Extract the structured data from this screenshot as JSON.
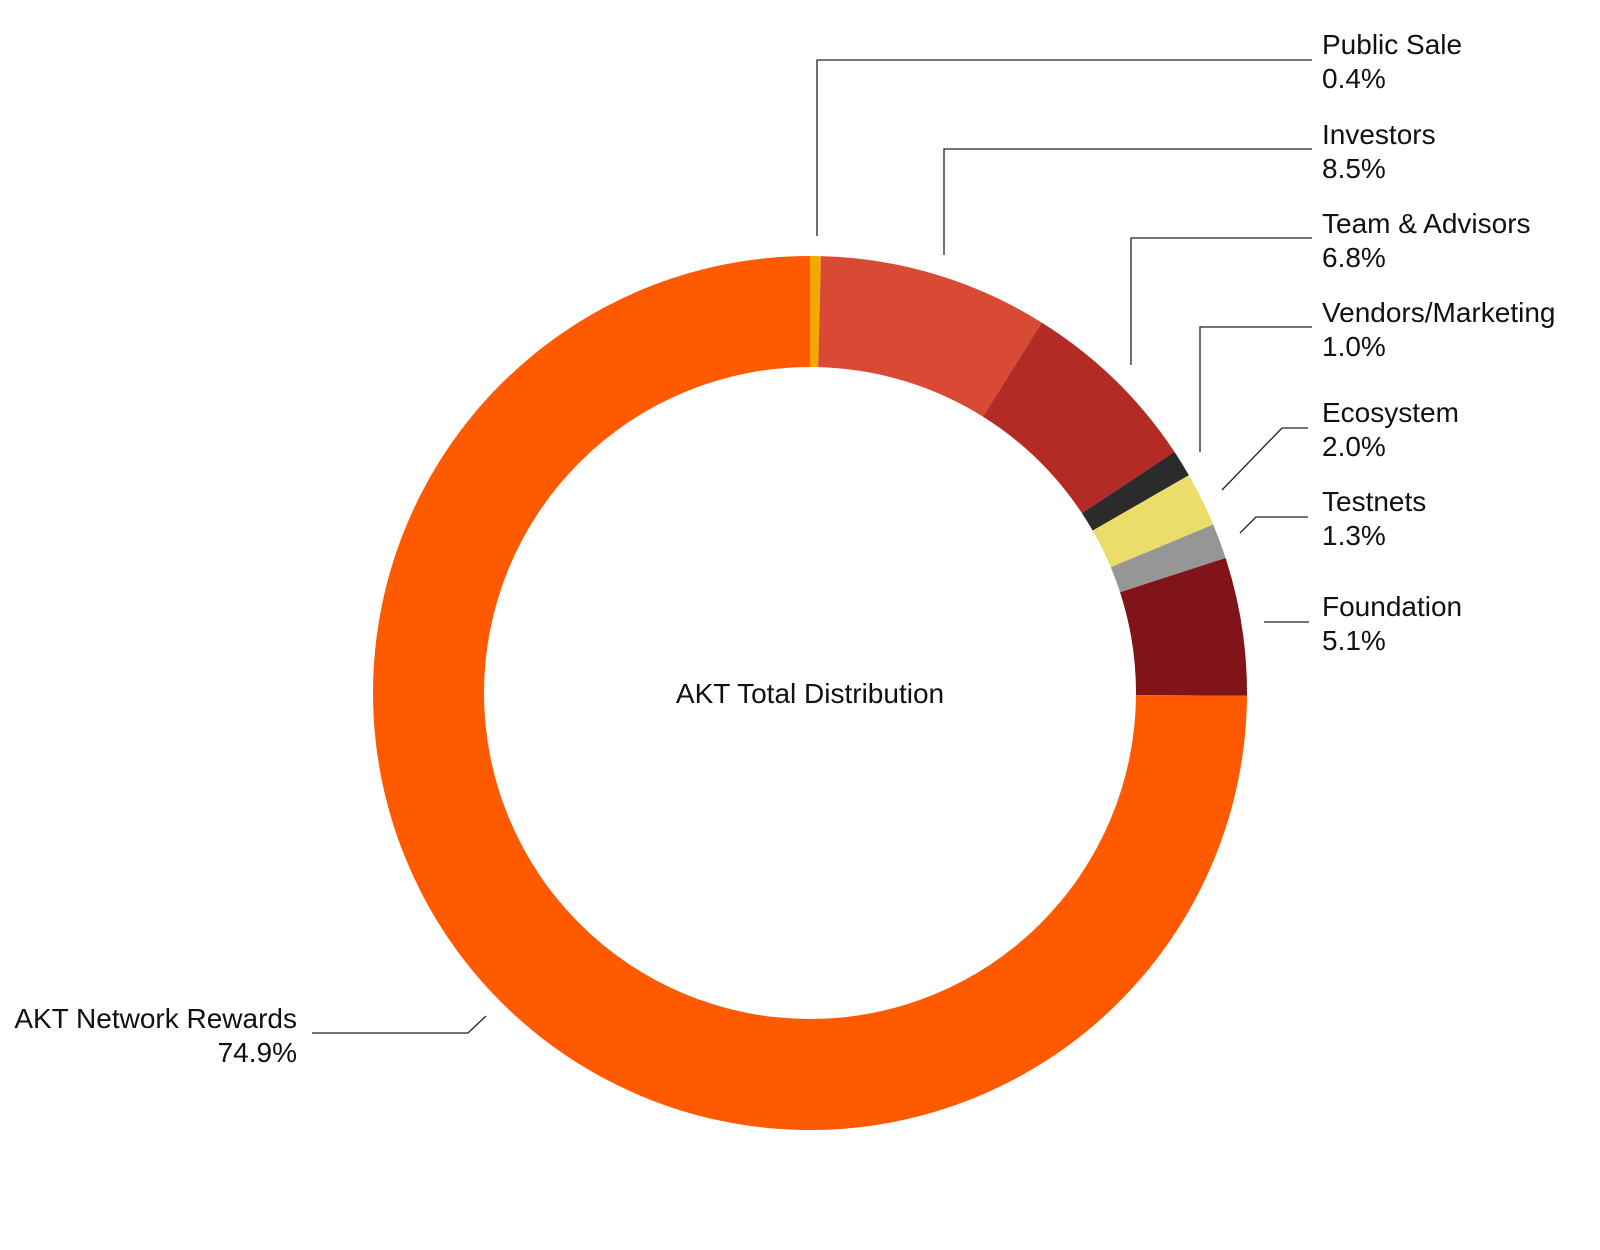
{
  "chart_data": {
    "type": "pie",
    "variant": "donut",
    "title": "AKT Total Distribution",
    "unit": "%",
    "legend": "none",
    "slices": [
      {
        "name": "Public Sale",
        "label": "0.4%",
        "value": 0.4,
        "color": "#F5A800"
      },
      {
        "name": "Investors",
        "label": "8.5%",
        "value": 8.5,
        "color": "#D94A35"
      },
      {
        "name": "Team & Advisors",
        "label": "6.8%",
        "value": 6.8,
        "color": "#B42A25"
      },
      {
        "name": "Vendors/Marketing",
        "label": "1.0%",
        "value": 1.0,
        "color": "#2B2B2B"
      },
      {
        "name": "Ecosystem",
        "label": "2.0%",
        "value": 2.0,
        "color": "#EBDD6A"
      },
      {
        "name": "Testnets",
        "label": "1.3%",
        "value": 1.3,
        "color": "#969696"
      },
      {
        "name": "Foundation",
        "label": "5.1%",
        "value": 5.1,
        "color": "#811418"
      },
      {
        "name": "AKT Network Rewards",
        "label": "74.9%",
        "value": 74.9,
        "color": "#FF5A00"
      }
    ]
  }
}
